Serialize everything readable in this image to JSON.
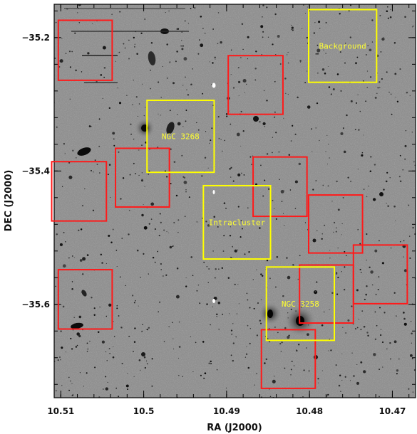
{
  "axes": {
    "xlabel": "RA (J2000)",
    "ylabel": "DEC (J2000)",
    "x_ticks": [
      {
        "value": 10.51,
        "label": "10.51"
      },
      {
        "value": 10.5,
        "label": "10.5"
      },
      {
        "value": 10.49,
        "label": "10.49"
      },
      {
        "value": 10.48,
        "label": "10.48"
      },
      {
        "value": 10.47,
        "label": "10.47"
      }
    ],
    "y_ticks": [
      {
        "value": -35.2,
        "label": "−35.2"
      },
      {
        "value": -35.4,
        "label": "−35.4"
      },
      {
        "value": -35.6,
        "label": "−35.6"
      }
    ],
    "xlim": [
      10.5108,
      10.4672
    ],
    "ylim": [
      -35.15,
      -35.74
    ]
  },
  "image": {
    "style": "grayscale sky image, inverted (dark sources on gray background)"
  },
  "fields": {
    "colors": {
      "yellow": "#ffff00",
      "red": "#ff1a1a"
    },
    "labeled": [
      {
        "label": "Background",
        "color": "yellow",
        "ra": [
          10.4801,
          10.4719
        ],
        "dec": [
          -35.158,
          -35.267
        ]
      },
      {
        "label": "NGC 3268",
        "color": "yellow",
        "ra": [
          10.4996,
          10.4915
        ],
        "dec": [
          -35.294,
          -35.402
        ]
      },
      {
        "label": "Intracluster",
        "color": "yellow",
        "ra": [
          10.4928,
          10.4847
        ],
        "dec": [
          -35.422,
          -35.532
        ]
      },
      {
        "label": "NGC 3258",
        "color": "yellow",
        "ra": [
          10.4852,
          10.477
        ],
        "dec": [
          -35.544,
          -35.654
        ]
      }
    ],
    "red": [
      {
        "ra": [
          10.5103,
          10.5038
        ],
        "dec": [
          -35.174,
          -35.264
        ]
      },
      {
        "ra": [
          10.4898,
          10.4832
        ],
        "dec": [
          -35.227,
          -35.315
        ]
      },
      {
        "ra": [
          10.5034,
          10.4969
        ],
        "dec": [
          -35.366,
          -35.454
        ]
      },
      {
        "ra": [
          10.5111,
          10.5045
        ],
        "dec": [
          -35.386,
          -35.475
        ]
      },
      {
        "ra": [
          10.4868,
          10.4803
        ],
        "dec": [
          -35.379,
          -35.468
        ]
      },
      {
        "ra": [
          10.4801,
          10.4736
        ],
        "dec": [
          -35.436,
          -35.523
        ]
      },
      {
        "ra": [
          10.5103,
          10.5038
        ],
        "dec": [
          -35.548,
          -35.637
        ]
      },
      {
        "ra": [
          10.4812,
          10.4747
        ],
        "dec": [
          -35.541,
          -35.628
        ]
      },
      {
        "ra": [
          10.4747,
          10.4682
        ],
        "dec": [
          -35.511,
          -35.599
        ]
      },
      {
        "ra": [
          10.4858,
          10.4793
        ],
        "dec": [
          -35.638,
          -35.726
        ]
      }
    ]
  }
}
